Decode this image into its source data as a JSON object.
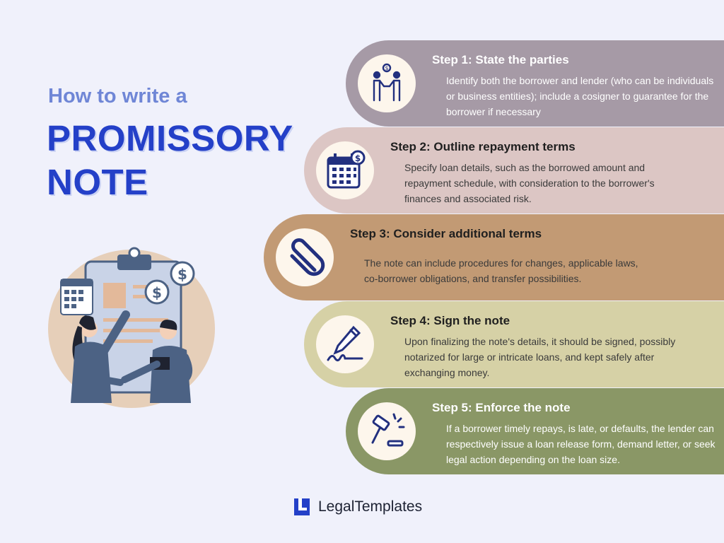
{
  "heading": {
    "line1": "How to write a",
    "line2": "PROMISSORY",
    "line3": "NOTE"
  },
  "steps": [
    {
      "title": "Step 1: State the parties",
      "body": "Identify both the borrower and lender (who can be individuals or business entities); include a cosigner to guarantee for the borrower if necessary",
      "icon": "handshake-exchange-icon",
      "color": "#a69aa6"
    },
    {
      "title": "Step 2: Outline repayment terms",
      "body": "Specify loan details, such as the borrowed amount and repayment schedule, with consideration to the borrower's finances and associated risk.",
      "icon": "calendar-dollar-icon",
      "color": "#dcc6c4"
    },
    {
      "title": "Step 3: Consider additional terms",
      "body": "The note can include procedures for changes, applicable laws, co-borrower obligations, and transfer possibilities.",
      "icon": "paperclip-icon",
      "color": "#c29a74"
    },
    {
      "title": "Step 4: Sign the note",
      "body": "Upon finalizing the note's details, it should be signed, possibly notarized for large or intricate loans, and kept safely after exchanging money.",
      "icon": "pen-signature-icon",
      "color": "#d6d1a6"
    },
    {
      "title": "Step 5: Enforce the note",
      "body": "If a borrower timely repays, is late, or defaults, the lender can respectively issue a loan release form, demand letter, or seek legal action depending on the loan size.",
      "icon": "gavel-icon",
      "color": "#8a9766"
    }
  ],
  "footer": {
    "brand": "LegalTemplates",
    "logo": "legaltemplates-logo"
  },
  "colors": {
    "background": "#f0f1fb",
    "accent": "#2440c8",
    "icon": "#22307f"
  }
}
